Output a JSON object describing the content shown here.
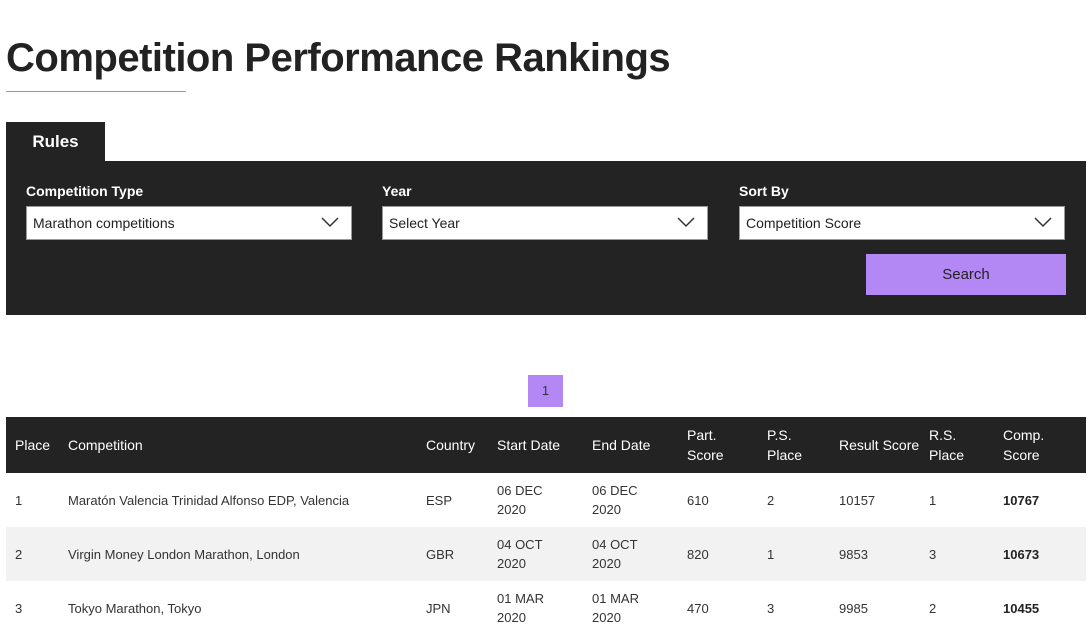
{
  "header": {
    "title": "Competition Performance Rankings"
  },
  "tabs": [
    "Rules"
  ],
  "filters": [
    {
      "label": "Competition Type",
      "value": "Marathon competitions"
    },
    {
      "label": "Year",
      "value": "Select Year"
    },
    {
      "label": "Sort By",
      "value": "Competition Score"
    }
  ],
  "search_button": "Search",
  "pagination": [
    "1"
  ],
  "table": {
    "columns": [
      "Place",
      "Competition",
      "Country",
      "Start Date",
      "End Date",
      "Part. Score",
      "P.S. Place",
      "Result Score",
      "R.S. Place",
      "Comp. Score"
    ],
    "rows": [
      [
        "1",
        "Maratón Valencia Trinidad Alfonso EDP, Valencia",
        "ESP",
        "06 DEC 2020",
        "06 DEC 2020",
        "610",
        "2",
        "10157",
        "1",
        "10767"
      ],
      [
        "2",
        "Virgin Money London Marathon, London",
        "GBR",
        "04 OCT 2020",
        "04 OCT 2020",
        "820",
        "1",
        "9853",
        "3",
        "10673"
      ],
      [
        "3",
        "Tokyo Marathon, Tokyo",
        "JPN",
        "01 MAR 2020",
        "01 MAR 2020",
        "470",
        "3",
        "9985",
        "2",
        "10455"
      ]
    ]
  }
}
